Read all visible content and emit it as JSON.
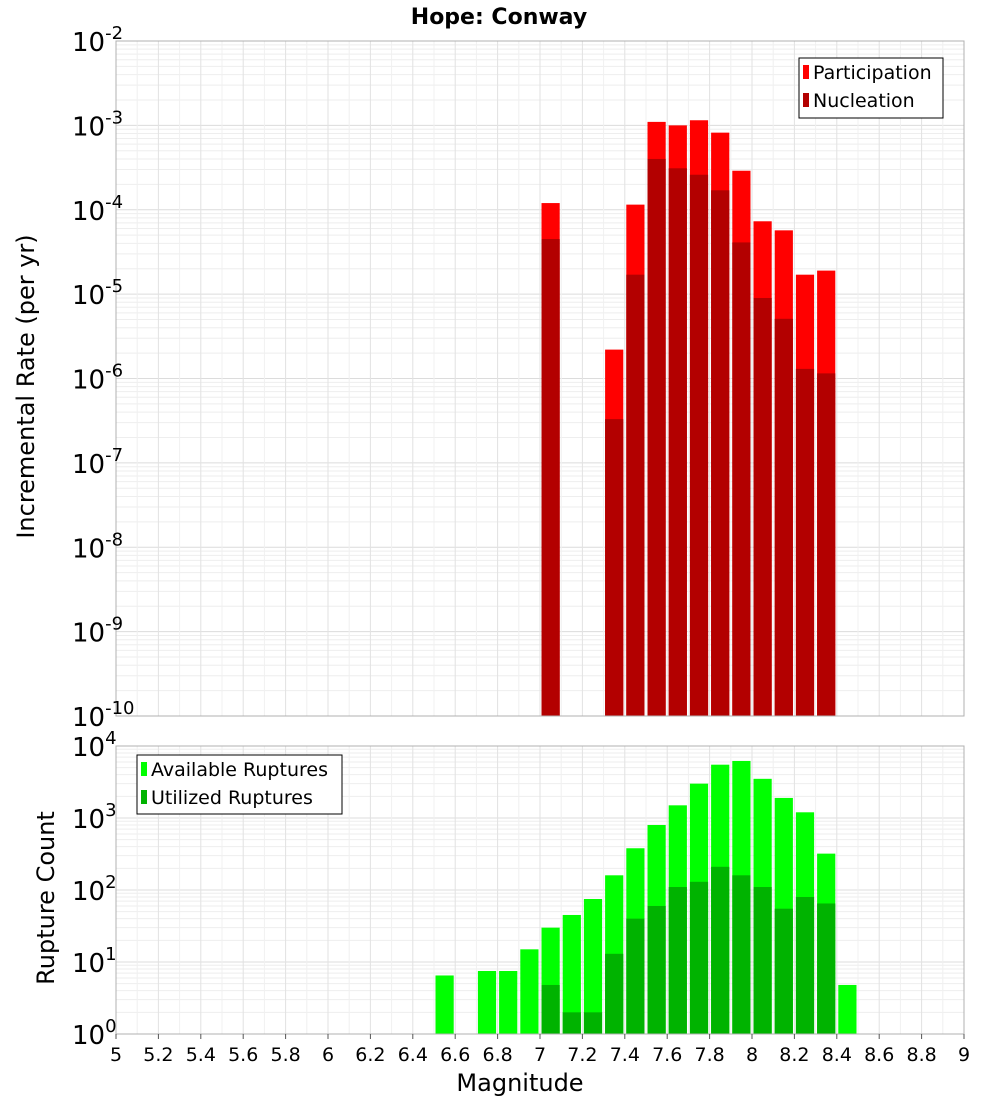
{
  "title": "Hope: Conway",
  "chart_data": [
    {
      "type": "bar",
      "ylabel": "Incremental Rate (per yr)",
      "yscale": "log",
      "ylim": [
        1e-10,
        0.01
      ],
      "xlim": [
        5,
        9
      ],
      "bin_width": 0.1,
      "grid": true,
      "legend_position": "top-right",
      "series": [
        {
          "name": "Participation",
          "color": "#ff0000",
          "x": [
            7.05,
            7.35,
            7.45,
            7.55,
            7.65,
            7.75,
            7.85,
            7.95,
            8.05,
            8.15,
            8.25,
            8.35
          ],
          "values": [
            0.00012,
            2.2e-06,
            0.000115,
            0.0011,
            0.001,
            0.00115,
            0.00082,
            0.00029,
            7.3e-05,
            5.7e-05,
            1.7e-05,
            1.9e-05
          ]
        },
        {
          "name": "Nucleation",
          "color": "#b30000",
          "x": [
            7.05,
            7.35,
            7.45,
            7.55,
            7.65,
            7.75,
            7.85,
            7.95,
            8.05,
            8.15,
            8.25,
            8.35
          ],
          "values": [
            4.5e-05,
            3.3e-07,
            1.7e-05,
            0.0004,
            0.00031,
            0.00026,
            0.00017,
            4.1e-05,
            9e-06,
            5.1e-06,
            1.3e-06,
            1.15e-06
          ]
        }
      ]
    },
    {
      "type": "bar",
      "xlabel": "Magnitude",
      "ylabel": "Rupture Count",
      "yscale": "log",
      "ylim": [
        1,
        10000
      ],
      "xlim": [
        5,
        9
      ],
      "bin_width": 0.1,
      "grid": true,
      "legend_position": "top-left",
      "x_ticks": [
        "5",
        "5.2",
        "5.4",
        "5.6",
        "5.8",
        "6",
        "6.2",
        "6.4",
        "6.6",
        "6.8",
        "7",
        "7.2",
        "7.4",
        "7.6",
        "7.8",
        "8",
        "8.2",
        "8.4",
        "8.6",
        "8.8",
        "9"
      ],
      "series": [
        {
          "name": "Available Ruptures",
          "color": "#00ff00",
          "x": [
            6.55,
            6.75,
            6.85,
            6.95,
            7.05,
            7.15,
            7.25,
            7.35,
            7.45,
            7.55,
            7.65,
            7.75,
            7.85,
            7.95,
            8.05,
            8.15,
            8.25,
            8.35,
            8.45
          ],
          "values": [
            6.5,
            7.5,
            7.5,
            15,
            30,
            45,
            75,
            160,
            380,
            800,
            1500,
            3000,
            5500,
            6200,
            3500,
            1900,
            1200,
            320,
            4.8
          ]
        },
        {
          "name": "Utilized Ruptures",
          "color": "#00b300",
          "x": [
            7.05,
            7.15,
            7.25,
            7.35,
            7.45,
            7.55,
            7.65,
            7.75,
            7.85,
            7.95,
            8.05,
            8.15,
            8.25,
            8.35
          ],
          "values": [
            4.8,
            2,
            2,
            13,
            40,
            60,
            110,
            130,
            210,
            160,
            110,
            55,
            80,
            65
          ]
        }
      ]
    }
  ]
}
